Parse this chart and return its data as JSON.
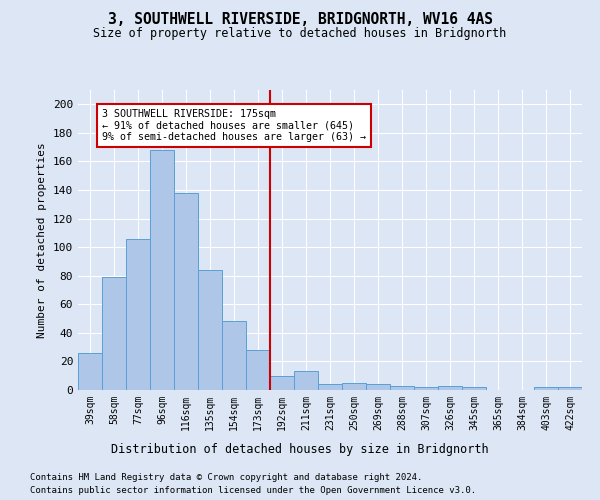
{
  "title": "3, SOUTHWELL RIVERSIDE, BRIDGNORTH, WV16 4AS",
  "subtitle": "Size of property relative to detached houses in Bridgnorth",
  "xlabel": "Distribution of detached houses by size in Bridgnorth",
  "ylabel": "Number of detached properties",
  "categories": [
    "39sqm",
    "58sqm",
    "77sqm",
    "96sqm",
    "116sqm",
    "135sqm",
    "154sqm",
    "173sqm",
    "192sqm",
    "211sqm",
    "231sqm",
    "250sqm",
    "269sqm",
    "288sqm",
    "307sqm",
    "326sqm",
    "345sqm",
    "365sqm",
    "384sqm",
    "403sqm",
    "422sqm"
  ],
  "values": [
    26,
    79,
    106,
    168,
    138,
    84,
    48,
    28,
    10,
    13,
    4,
    5,
    4,
    3,
    2,
    3,
    2,
    0,
    0,
    2,
    2
  ],
  "bar_color": "#aec6e8",
  "bar_edge_color": "#5a9fd4",
  "vline_x_index": 7,
  "annotation_text": "3 SOUTHWELL RIVERSIDE: 175sqm\n← 91% of detached houses are smaller (645)\n9% of semi-detached houses are larger (63) →",
  "annotation_box_color": "#ffffff",
  "annotation_box_edge_color": "#cc0000",
  "vline_color": "#cc0000",
  "ylim": [
    0,
    210
  ],
  "yticks": [
    0,
    20,
    40,
    60,
    80,
    100,
    120,
    140,
    160,
    180,
    200
  ],
  "background_color": "#dce6f5",
  "footer_line1": "Contains HM Land Registry data © Crown copyright and database right 2024.",
  "footer_line2": "Contains public sector information licensed under the Open Government Licence v3.0."
}
